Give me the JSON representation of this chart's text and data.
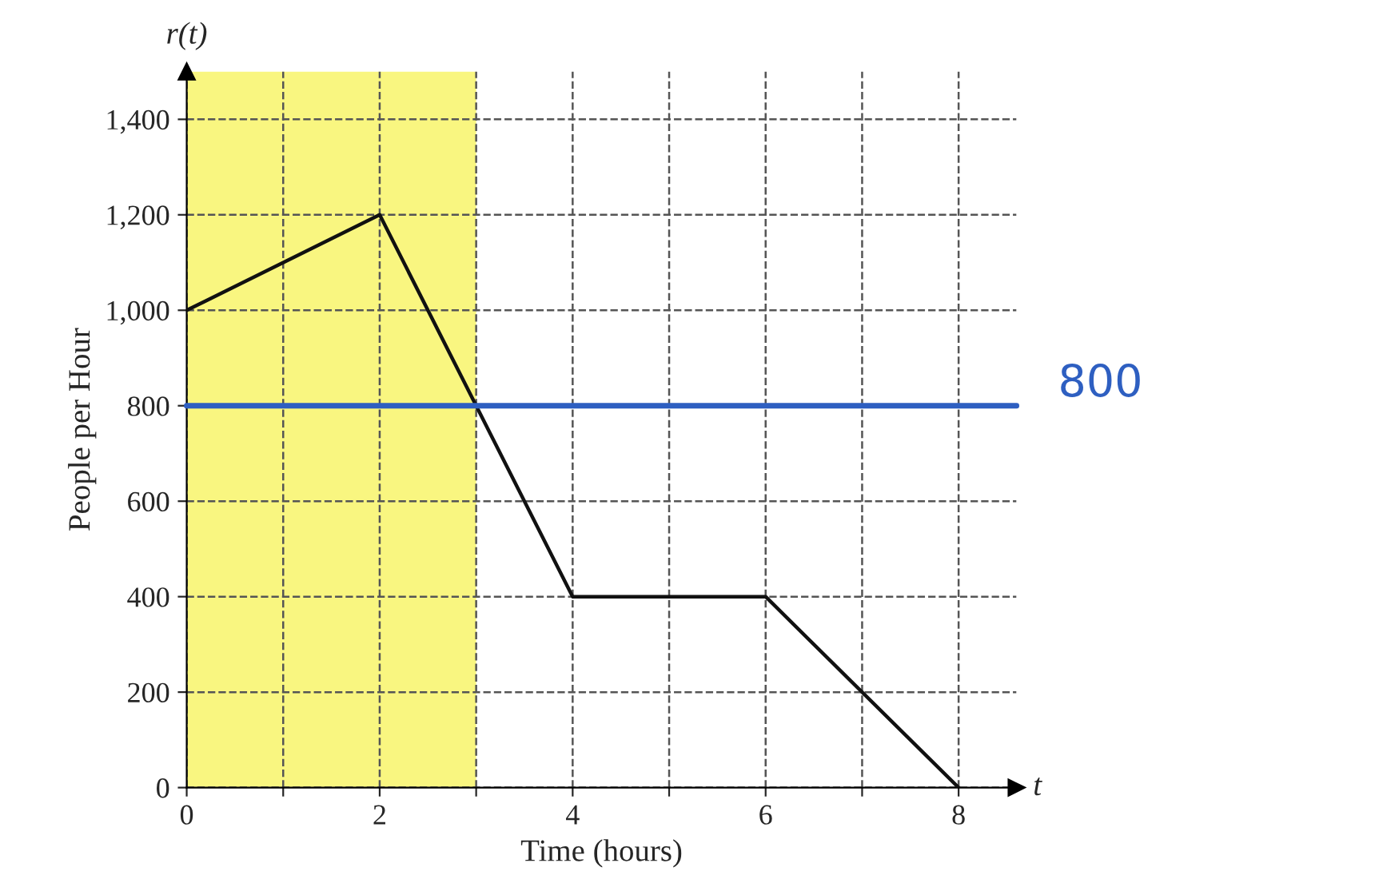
{
  "chart_data": {
    "type": "line",
    "xlabel": "Time (hours)",
    "ylabel": "People per Hour",
    "annotations": [
      "r(t)",
      "t"
    ],
    "x": [
      0,
      2,
      4,
      6,
      8
    ],
    "series": [
      {
        "color": "#111111",
        "values": [
          1000,
          1200,
          400,
          400,
          0
        ]
      }
    ],
    "xlim": [
      0,
      8.6
    ],
    "ylim": [
      0,
      1500
    ],
    "xticks": [
      0,
      {
        "value": 1,
        "label": null
      },
      2,
      {
        "value": 3,
        "label": null
      },
      4,
      {
        "value": 5,
        "label": null
      },
      6,
      {
        "value": 7,
        "label": null
      },
      8
    ],
    "yticks": [
      0,
      200,
      400,
      600,
      800,
      {
        "value": 1000,
        "label": "1,000"
      },
      {
        "value": 1200,
        "label": "1,200"
      },
      {
        "value": 1400,
        "label": "1,400"
      }
    ],
    "grid": true,
    "line_style": "solid",
    "marker": "none",
    "ref_lines": [
      {
        "axis": "y",
        "value": 800,
        "label": "800",
        "color": "#2e5fc1",
        "line_style": "solid"
      }
    ],
    "bands": [
      {
        "axis": "x",
        "from": 0,
        "to": 3,
        "color": "#f6f24a"
      }
    ]
  }
}
